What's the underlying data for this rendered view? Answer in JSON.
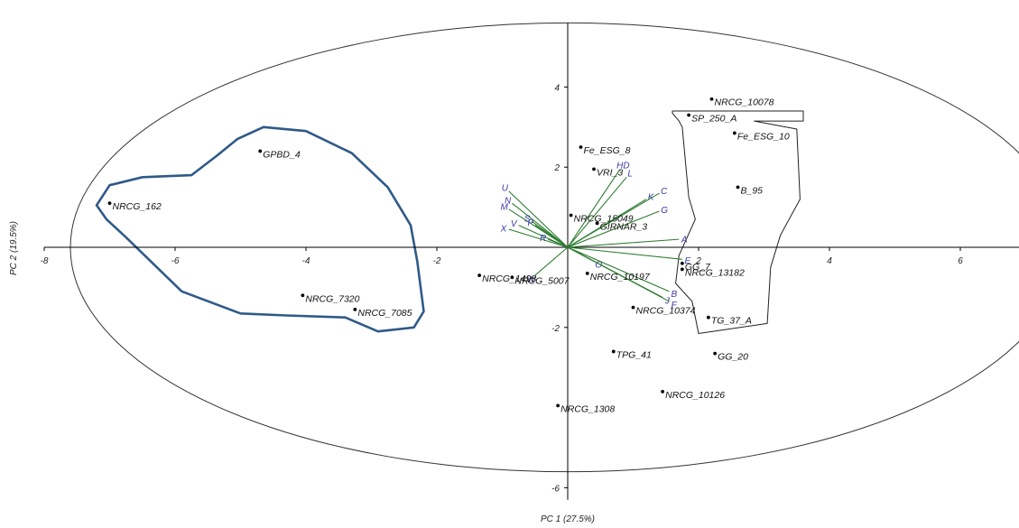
{
  "chart_data": {
    "type": "scatter",
    "subtype": "pca-biplot",
    "title": "",
    "xlabel": "PC 1 (27.5%)",
    "ylabel": "PC 2 (19.5%)",
    "xlim": [
      -8,
      7.5
    ],
    "ylim": [
      -6.3,
      5.6
    ],
    "xticks": [
      -8,
      -6,
      -4,
      -2,
      2,
      4,
      6
    ],
    "yticks": [
      -6,
      -2,
      2,
      4
    ],
    "grid": false,
    "confidence_ellipse": {
      "cx": 0,
      "cy": 0,
      "rx": 7.6,
      "ry": 5.6
    },
    "points": [
      {
        "label": "NRCG_10078",
        "x": 2.2,
        "y": 3.7
      },
      {
        "label": "SP_250_A",
        "x": 1.85,
        "y": 3.3
      },
      {
        "label": "Fe_ESG_10",
        "x": 2.55,
        "y": 2.85
      },
      {
        "label": "Fe_ESG_8",
        "x": 0.2,
        "y": 2.5
      },
      {
        "label": "GPBD_4",
        "x": -4.7,
        "y": 2.4
      },
      {
        "label": "VRI_3",
        "x": 0.4,
        "y": 1.95
      },
      {
        "label": "B_95",
        "x": 2.6,
        "y": 1.5
      },
      {
        "label": "NRCG_162",
        "x": -7,
        "y": 1.1
      },
      {
        "label": "NRCG_15049",
        "x": 0.05,
        "y": 0.8
      },
      {
        "label": "GIRNAR_3",
        "x": 0.45,
        "y": 0.6
      },
      {
        "label": "GG_7",
        "x": 1.75,
        "y": -0.4
      },
      {
        "label": "NRCG_13182",
        "x": 1.75,
        "y": -0.55
      },
      {
        "label": "NRCG_1498",
        "x": -1.35,
        "y": -0.7
      },
      {
        "label": "NRCG_5007",
        "x": -0.85,
        "y": -0.75
      },
      {
        "label": "NRCG_10197",
        "x": 0.3,
        "y": -0.65
      },
      {
        "label": "NRCG_7320",
        "x": -4.05,
        "y": -1.2
      },
      {
        "label": "NRCG_7085",
        "x": -3.25,
        "y": -1.55
      },
      {
        "label": "NRCG_10374",
        "x": 1,
        "y": -1.5
      },
      {
        "label": "TG_37_A",
        "x": 2.15,
        "y": -1.75
      },
      {
        "label": "TPG_41",
        "x": 0.7,
        "y": -2.6
      },
      {
        "label": "GG_20",
        "x": 2.25,
        "y": -2.65
      },
      {
        "label": "NRCG_10126",
        "x": 1.45,
        "y": -3.6
      },
      {
        "label": "NRCG_1308",
        "x": -0.15,
        "y": -3.95
      }
    ],
    "vectors": [
      {
        "label": "U",
        "x": -0.9,
        "y": 1.4
      },
      {
        "label": "N",
        "x": -0.85,
        "y": 1.1
      },
      {
        "label": "M",
        "x": -0.9,
        "y": 0.95
      },
      {
        "label": "S",
        "x": -0.55,
        "y": 0.65
      },
      {
        "label": "V",
        "x": -0.75,
        "y": 0.55
      },
      {
        "label": "P",
        "x": -0.5,
        "y": 0.55
      },
      {
        "label": "X",
        "x": -0.9,
        "y": 0.45
      },
      {
        "label": "R",
        "x": -0.3,
        "y": 0.2
      },
      {
        "label": "HD",
        "x": 0.8,
        "y": 1.95
      },
      {
        "label": "L",
        "x": 0.9,
        "y": 1.75
      },
      {
        "label": "K",
        "x": 1.2,
        "y": 1.2
      },
      {
        "label": "C",
        "x": 1.4,
        "y": 1.35
      },
      {
        "label": "G",
        "x": 1.4,
        "y": 0.9
      },
      {
        "label": "A",
        "x": 1.7,
        "y": 0.2
      },
      {
        "label": "E",
        "x": 1.75,
        "y": -0.3
      },
      {
        "label": "O",
        "x": 0.4,
        "y": -0.35
      },
      {
        "label": "W",
        "x": -0.5,
        "y": -0.7
      },
      {
        "label": "B",
        "x": 1.55,
        "y": -1.1
      },
      {
        "label": "J",
        "x": 1.45,
        "y": -1.25
      },
      {
        "label": "F",
        "x": 1.55,
        "y": -1.35
      }
    ],
    "cluster_outlines": [
      {
        "style": "thick-blue",
        "points": [
          [
            -4.65,
            3
          ],
          [
            -4.0,
            2.9
          ],
          [
            -3.3,
            2.35
          ],
          [
            -2.75,
            1.5
          ],
          [
            -2.4,
            0.55
          ],
          [
            -2.3,
            -0.35
          ],
          [
            -2.2,
            -1.6
          ],
          [
            -2.35,
            -2.0
          ],
          [
            -2.9,
            -2.1
          ],
          [
            -3.4,
            -1.75
          ],
          [
            -4.3,
            -1.7
          ],
          [
            -5.0,
            -1.65
          ],
          [
            -5.9,
            -1.1
          ],
          [
            -6.75,
            0.25
          ],
          [
            -7.05,
            0.7
          ],
          [
            -7.2,
            1.05
          ],
          [
            -7.0,
            1.55
          ],
          [
            -6.5,
            1.75
          ],
          [
            -5.75,
            1.8
          ],
          [
            -5.35,
            2.3
          ],
          [
            -5.05,
            2.7
          ]
        ]
      },
      {
        "style": "thin-black",
        "points": [
          [
            1.6,
            3.4
          ],
          [
            3.6,
            3.4
          ],
          [
            3.6,
            3.25
          ],
          [
            3.6,
            3.15
          ],
          [
            2.85,
            3.15
          ],
          [
            3.5,
            2.95
          ],
          [
            3.55,
            1.2
          ],
          [
            3.25,
            0.3
          ],
          [
            3.1,
            -0.5
          ],
          [
            3.05,
            -1.9
          ],
          [
            2.0,
            -2.15
          ],
          [
            1.9,
            -1.35
          ],
          [
            1.65,
            -0.9
          ],
          [
            1.7,
            -0.2
          ],
          [
            1.95,
            0.7
          ],
          [
            1.85,
            1.25
          ],
          [
            1.75,
            3.0
          ],
          [
            1.7,
            3.15
          ],
          [
            1.6,
            3.35
          ]
        ]
      }
    ],
    "colors": {
      "vectors": "#2e7d32",
      "vector_labels": "#3a3aa8",
      "cluster_blue": "#2f5a8a",
      "ellipse": "#333333"
    }
  }
}
